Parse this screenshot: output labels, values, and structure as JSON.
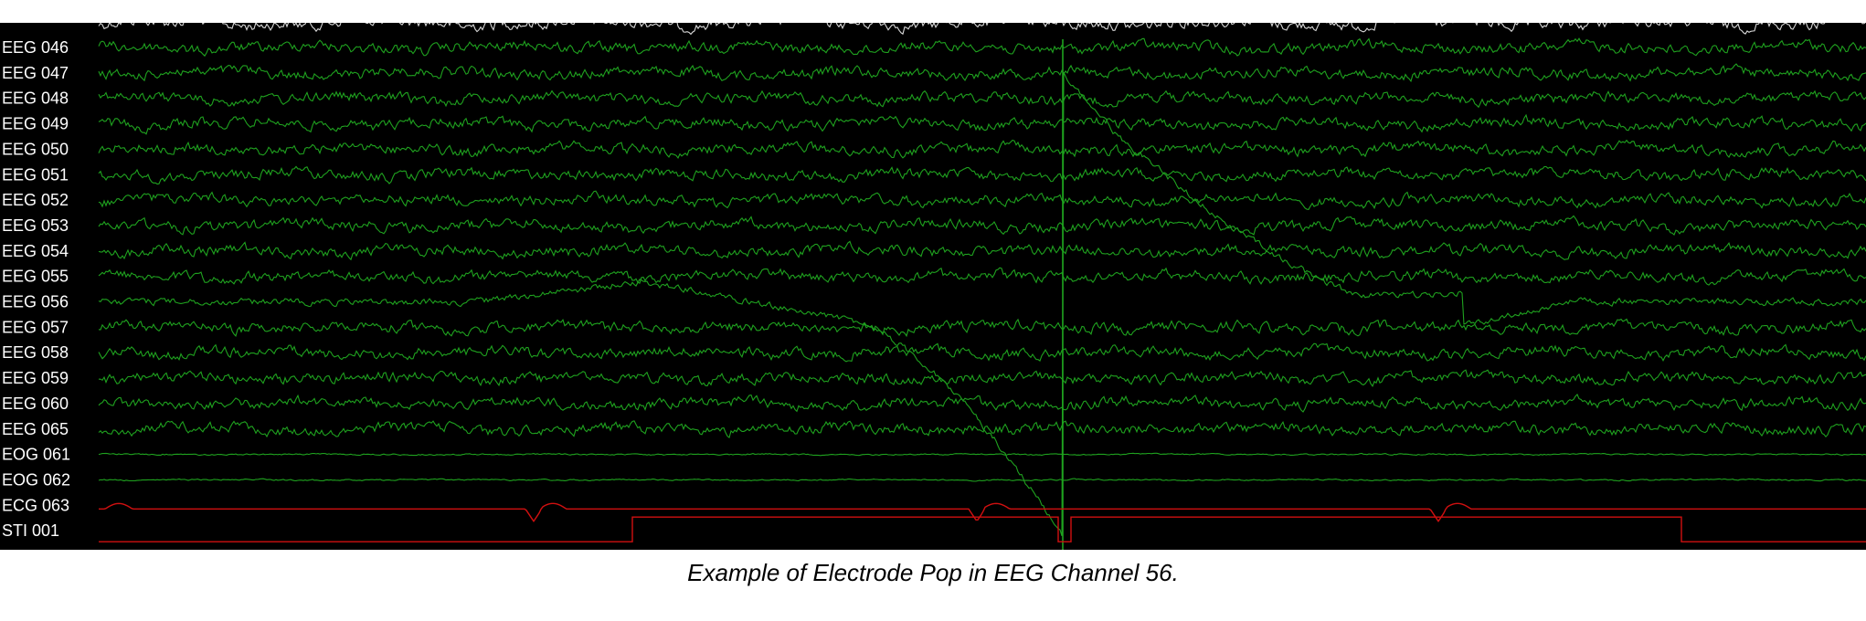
{
  "viewer": {
    "background": "#000000",
    "colors": {
      "eeg": "#1fa21f",
      "eeg_top": "#d8d8d8",
      "eog": "#1fa21f",
      "ecg": "#d01010",
      "sti": "#d01010",
      "label": "#ffffff"
    },
    "channels": [
      {
        "label": "EEG 046",
        "kind": "eeg"
      },
      {
        "label": "EEG 047",
        "kind": "eeg"
      },
      {
        "label": "EEG 048",
        "kind": "eeg"
      },
      {
        "label": "EEG 049",
        "kind": "eeg"
      },
      {
        "label": "EEG 050",
        "kind": "eeg"
      },
      {
        "label": "EEG 051",
        "kind": "eeg"
      },
      {
        "label": "EEG 052",
        "kind": "eeg"
      },
      {
        "label": "EEG 053",
        "kind": "eeg"
      },
      {
        "label": "EEG 054",
        "kind": "eeg"
      },
      {
        "label": "EEG 055",
        "kind": "eeg"
      },
      {
        "label": "EEG 056",
        "kind": "eeg-pop"
      },
      {
        "label": "EEG 057",
        "kind": "eeg"
      },
      {
        "label": "EEG 058",
        "kind": "eeg"
      },
      {
        "label": "EEG 059",
        "kind": "eeg"
      },
      {
        "label": "EEG 060",
        "kind": "eeg"
      },
      {
        "label": "EEG 065",
        "kind": "eeg"
      },
      {
        "label": "EOG 061",
        "kind": "eog"
      },
      {
        "label": "EOG 062",
        "kind": "eog"
      },
      {
        "label": "ECG 063",
        "kind": "ecg"
      },
      {
        "label": "STI 001",
        "kind": "sti"
      }
    ]
  },
  "caption": "Example of Electrode Pop in EEG Channel 56."
}
